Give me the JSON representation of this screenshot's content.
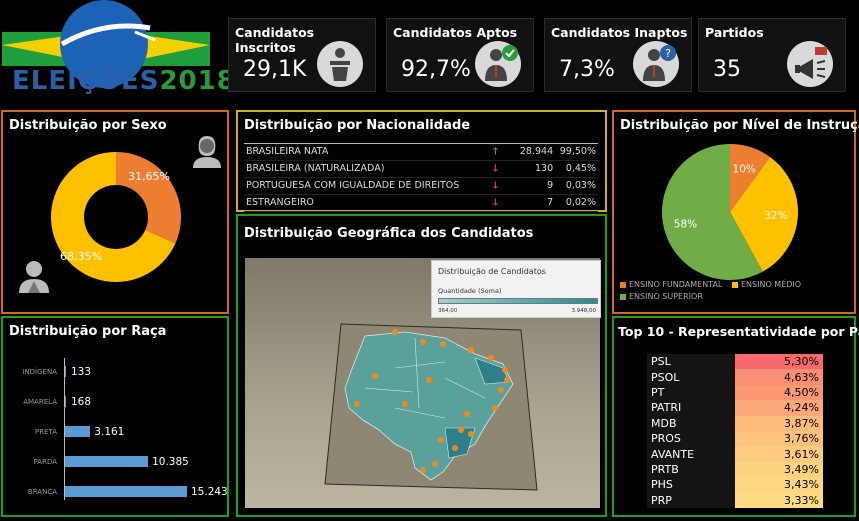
{
  "logo": {
    "text_part1": "ELEIÇÕES",
    "text_part2": "2018"
  },
  "kpis": [
    {
      "title": "Candidatos Inscritos",
      "value": "29,1K",
      "icon": "podium-icon"
    },
    {
      "title": "Candidatos Aptos",
      "value": "92,7%",
      "icon": "approved-candidate-icon"
    },
    {
      "title": "Candidatos Inaptos",
      "value": "7,3%",
      "icon": "question-candidate-icon"
    },
    {
      "title": "Partidos",
      "value": "35",
      "icon": "megaphone-icon"
    }
  ],
  "sexo": {
    "title": "Distribuição por Sexo",
    "slices": [
      {
        "label": "31,65%",
        "value": 31.65,
        "color": "#ed7d31"
      },
      {
        "label": "68,35%",
        "value": 68.35,
        "color": "#ffc000"
      }
    ],
    "icons": [
      "female-user-icon",
      "male-user-icon"
    ]
  },
  "nacionalidade": {
    "title": "Distribuição por Nacionalidade",
    "rows": [
      {
        "name": "BRASILEIRA NATA",
        "trend": "up",
        "count": "28.944",
        "pct": "99,50%"
      },
      {
        "name": "BRASILEIRA (NATURALIZADA)",
        "trend": "down",
        "count": "130",
        "pct": "0,45%"
      },
      {
        "name": "PORTUGUESA COM IGUALDADE DE DIREITOS",
        "trend": "down",
        "count": "9",
        "pct": "0,03%"
      },
      {
        "name": "ESTRANGEIRO",
        "trend": "down",
        "count": "7",
        "pct": "0,02%"
      }
    ],
    "arrow_up": "🡑",
    "arrow_down": "🡓"
  },
  "geo": {
    "title": "Distribuição Geográfica dos Candidatos",
    "legend_title": "Distribuição de Candidatos",
    "legend_series": "Quantidade (Soma)",
    "legend_min": "364,00",
    "legend_max": "3.948,00"
  },
  "instrucao": {
    "title": "Distribuição por Nível de Instrução",
    "slices": [
      {
        "name": "ENSINO FUNDAMENTAL",
        "label": "10%",
        "value": 10,
        "color": "#ed7d31"
      },
      {
        "name": "ENSINO MÉDIO",
        "label": "32%",
        "value": 32,
        "color": "#ffc000"
      },
      {
        "name": "ENSINO SUPERIOR",
        "label": "58%",
        "value": 58,
        "color": "#70ad47"
      }
    ]
  },
  "raca": {
    "title": "Distribuição por Raça",
    "bar_color": "#5b9bd5",
    "items": [
      {
        "name": "INDÍGENA",
        "value": 133,
        "label": "133"
      },
      {
        "name": "AMARELA",
        "value": 168,
        "label": "168"
      },
      {
        "name": "PRETA",
        "value": 3161,
        "label": "3.161"
      },
      {
        "name": "PARDA",
        "value": 10385,
        "label": "10.385"
      },
      {
        "name": "BRANCA",
        "value": 15243,
        "label": "15.243"
      }
    ]
  },
  "partidos": {
    "title": "Top 10 - Representatividade por Partido",
    "rows": [
      {
        "name": "PSL",
        "pct": "5,30%",
        "value": 5.3
      },
      {
        "name": "PSOL",
        "pct": "4,63%",
        "value": 4.63
      },
      {
        "name": "PT",
        "pct": "4,50%",
        "value": 4.5
      },
      {
        "name": "PATRI",
        "pct": "4,24%",
        "value": 4.24
      },
      {
        "name": "MDB",
        "pct": "3,87%",
        "value": 3.87
      },
      {
        "name": "PROS",
        "pct": "3,76%",
        "value": 3.76
      },
      {
        "name": "AVANTE",
        "pct": "3,61%",
        "value": 3.61
      },
      {
        "name": "PRTB",
        "pct": "3,49%",
        "value": 3.49
      },
      {
        "name": "PHS",
        "pct": "3,43%",
        "value": 3.43
      },
      {
        "name": "PRP",
        "pct": "3,33%",
        "value": 3.33
      }
    ]
  },
  "colors": {
    "border_green": "#18a01e",
    "border_orange": "#d2691e",
    "border_yellow": "#c8b41e"
  }
}
